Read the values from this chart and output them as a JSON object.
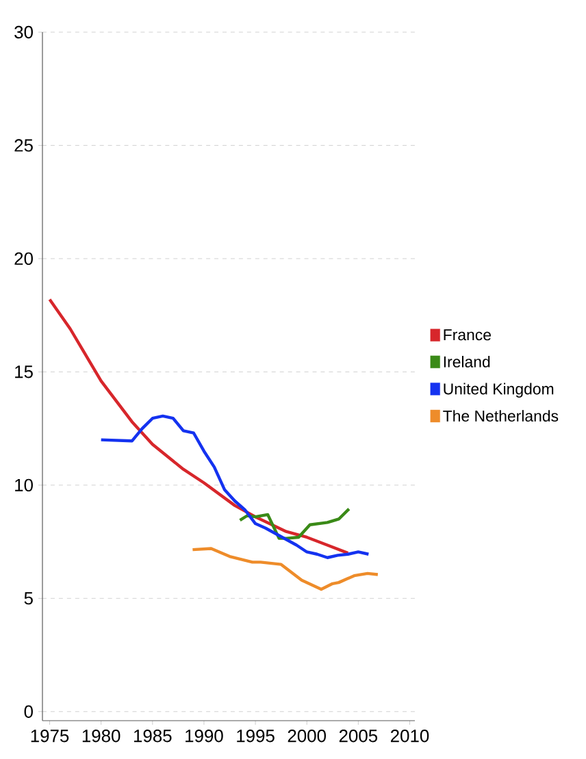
{
  "chart_data": {
    "type": "line",
    "xlim": [
      1974.3,
      2010.5
    ],
    "ylim": [
      -0.4,
      30
    ],
    "xticks": [
      1975,
      1980,
      1985,
      1990,
      1995,
      2000,
      2005,
      2010
    ],
    "yticks": [
      0,
      5,
      10,
      15,
      20,
      25,
      30
    ],
    "grid": "y",
    "legend": "right",
    "line_style": "solid",
    "series": [
      {
        "name": "France",
        "color": "#d7262b",
        "x": [
          1975,
          1977,
          1980,
          1983,
          1985,
          1988,
          1990,
          1993,
          1995,
          1998,
          2000,
          2002,
          2004
        ],
        "values": [
          18.2,
          16.9,
          14.6,
          12.8,
          11.8,
          10.7,
          10.1,
          9.1,
          8.6,
          7.95,
          7.7,
          7.35,
          7.0
        ]
      },
      {
        "name": "Ireland",
        "color": "#3a8a17",
        "x": [
          1993.5,
          1994.2,
          1995,
          1996.2,
          1997.3,
          1998,
          1999.2,
          2000.3,
          2002,
          2003.1,
          2004.1
        ],
        "values": [
          8.45,
          8.65,
          8.6,
          8.7,
          7.65,
          7.65,
          7.7,
          8.25,
          8.35,
          8.5,
          8.95
        ]
      },
      {
        "name": "United Kingdom",
        "color": "#1432f0",
        "x": [
          1980,
          1983,
          1984,
          1985,
          1986,
          1987,
          1988,
          1989,
          1990,
          1991,
          1992,
          1993,
          1994,
          1995,
          1996,
          1997,
          1998,
          1999,
          2000,
          2001,
          2002,
          2003,
          2004,
          2005,
          2006
        ],
        "values": [
          12.0,
          11.95,
          12.5,
          12.95,
          13.05,
          12.95,
          12.4,
          12.3,
          11.5,
          10.8,
          9.8,
          9.3,
          8.9,
          8.3,
          8.1,
          7.85,
          7.6,
          7.35,
          7.05,
          6.95,
          6.8,
          6.9,
          6.95,
          7.05,
          6.95
        ]
      },
      {
        "name": "The Netherlands",
        "color": "#ee8c2a",
        "x": [
          1988.9,
          1990.7,
          1992.5,
          1994.7,
          1995.5,
          1997.5,
          1999.5,
          2001.4,
          2002.5,
          2003.1,
          2004.6,
          2005.9,
          2006.9
        ],
        "values": [
          7.15,
          7.2,
          6.85,
          6.6,
          6.6,
          6.5,
          5.8,
          5.4,
          5.65,
          5.7,
          6.0,
          6.1,
          6.05
        ]
      }
    ]
  }
}
